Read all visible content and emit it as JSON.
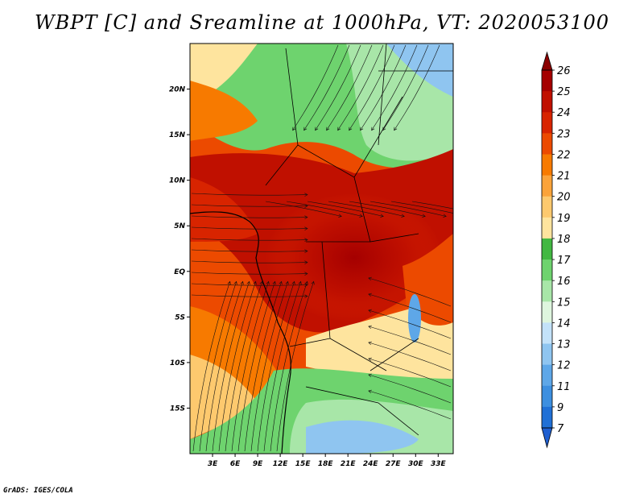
{
  "title": "WBPT [C] and Sreamline at 1000hPa, VT: 2020053100",
  "credit": "GrADS: IGES/COLA",
  "chart_data": {
    "type": "heatmap",
    "variable": "Wet-bulb potential temperature (C) with streamlines",
    "level": "1000hPa",
    "valid_time": "2020053100",
    "lon_range": [
      0,
      35
    ],
    "lat_range": [
      -20,
      25
    ],
    "lon_ticks": [
      {
        "value": 3,
        "label": "3E"
      },
      {
        "value": 6,
        "label": "6E"
      },
      {
        "value": 9,
        "label": "9E"
      },
      {
        "value": 12,
        "label": "12E"
      },
      {
        "value": 15,
        "label": "15E"
      },
      {
        "value": 18,
        "label": "18E"
      },
      {
        "value": 21,
        "label": "21E"
      },
      {
        "value": 24,
        "label": "24E"
      },
      {
        "value": 27,
        "label": "27E"
      },
      {
        "value": 30,
        "label": "30E"
      },
      {
        "value": 33,
        "label": "33E"
      }
    ],
    "lat_ticks": [
      {
        "value": 20,
        "label": "20N"
      },
      {
        "value": 15,
        "label": "15N"
      },
      {
        "value": 10,
        "label": "10N"
      },
      {
        "value": 5,
        "label": "5N"
      },
      {
        "value": 0,
        "label": "EQ"
      },
      {
        "value": -5,
        "label": "5S"
      },
      {
        "value": -10,
        "label": "10S"
      },
      {
        "value": -15,
        "label": "15S"
      }
    ],
    "colorbar": {
      "levels": [
        "26",
        "25",
        "24",
        "23",
        "22",
        "21",
        "20",
        "19",
        "18",
        "17",
        "16",
        "15",
        "14",
        "13",
        "12",
        "11",
        "9",
        "7"
      ],
      "colors": [
        "#a50000",
        "#c01000",
        "#d82400",
        "#ec4a00",
        "#f77a00",
        "#fba33a",
        "#fdc96e",
        "#fee49e",
        "#42b842",
        "#6ed36e",
        "#a8e6a8",
        "#def5de",
        "#c3e2f9",
        "#8fc5f0",
        "#5ea7e8",
        "#3d8fe0",
        "#2070d6"
      ]
    }
  }
}
